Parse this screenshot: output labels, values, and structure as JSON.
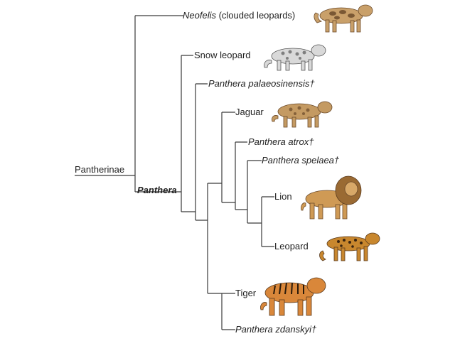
{
  "root": {
    "label": "Pantherinae"
  },
  "genus": {
    "label": "Panthera"
  },
  "taxa": {
    "neofelis": {
      "genus": "Neofelis",
      "common": " (clouded leopards)"
    },
    "snow_leopard": {
      "label": "Snow leopard"
    },
    "palaeosinensis": {
      "label": "Panthera palaeosinensis†"
    },
    "jaguar": {
      "label": "Jaguar"
    },
    "atrox": {
      "label": "Panthera atrox†"
    },
    "spelaea": {
      "label": "Panthera spelaea†"
    },
    "lion": {
      "label": "Lion"
    },
    "leopard": {
      "label": "Leopard"
    },
    "tiger": {
      "label": "Tiger"
    },
    "zdanskyi": {
      "label": "Panthera zdanskyi†"
    }
  },
  "colors": {
    "line": "#3a3a3a",
    "clouded_leopard": "#c9a06a",
    "snow_leopard": "#d9d9d9",
    "jaguar": "#c49a62",
    "lion": "#cf9a55",
    "leopard": "#c8872e",
    "tiger": "#d9873a"
  }
}
